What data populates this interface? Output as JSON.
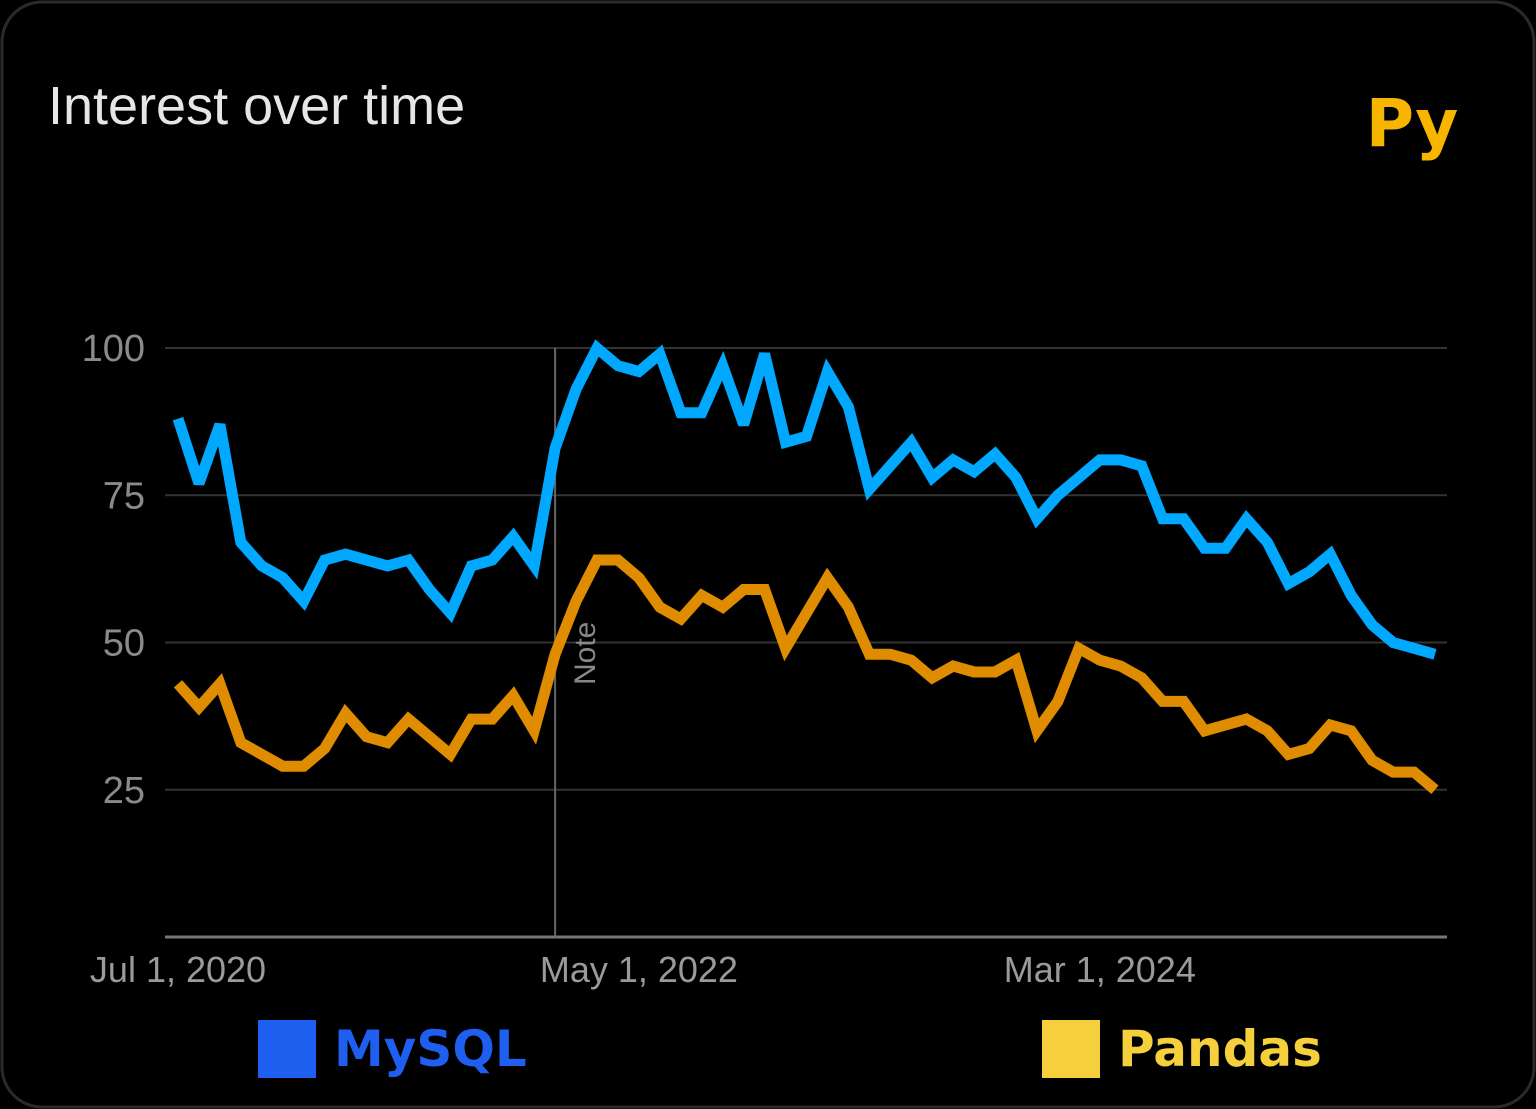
{
  "chart_data": {
    "type": "line",
    "title": "Interest over time",
    "logo": "Py",
    "categories": [
      "Jul 1, 2020",
      null,
      null,
      null,
      null,
      null,
      null,
      null,
      null,
      null,
      null,
      null,
      null,
      null,
      null,
      null,
      null,
      null,
      null,
      null,
      null,
      null,
      "May 1, 2022",
      null,
      null,
      null,
      null,
      null,
      null,
      null,
      null,
      null,
      null,
      null,
      null,
      null,
      null,
      null,
      null,
      null,
      null,
      null,
      null,
      null,
      "Mar 1, 2024",
      null,
      null,
      null,
      null,
      null,
      null,
      null,
      null,
      null,
      null,
      null,
      null,
      null,
      null,
      null,
      null
    ],
    "series": [
      {
        "name": "MySQL",
        "color": "#00a8ff",
        "legend_color": "#1f5ff0",
        "values": [
          88,
          77,
          87,
          67,
          63,
          61,
          57,
          64,
          65,
          64,
          63,
          64,
          59,
          55,
          63,
          64,
          68,
          63,
          83,
          93,
          100,
          97,
          96,
          99,
          89,
          89,
          97,
          87,
          99,
          84,
          85,
          96,
          90,
          76,
          80,
          84,
          78,
          81,
          79,
          82,
          78,
          71,
          75,
          78,
          81,
          81,
          80,
          71,
          71,
          66,
          66,
          71,
          67,
          60,
          62,
          65,
          58,
          53,
          50,
          49,
          48
        ]
      },
      {
        "name": "Pandas",
        "color": "#e08c00",
        "legend_color": "#f5cf3c",
        "values": [
          43,
          39,
          43,
          33,
          31,
          29,
          29,
          32,
          38,
          34,
          33,
          37,
          34,
          31,
          37,
          37,
          41,
          35,
          48,
          57,
          64,
          64,
          61,
          56,
          54,
          58,
          56,
          59,
          59,
          49,
          55,
          61,
          56,
          48,
          48,
          47,
          44,
          46,
          45,
          45,
          47,
          35,
          40,
          49,
          47,
          46,
          44,
          40,
          40,
          35,
          36,
          37,
          35,
          31,
          32,
          36,
          35,
          30,
          28,
          28,
          25
        ]
      }
    ],
    "annotation": {
      "text": "Note",
      "index": 18
    },
    "ylim": [
      0,
      100
    ],
    "yticks": [
      25,
      50,
      75,
      100
    ],
    "grid": true
  }
}
